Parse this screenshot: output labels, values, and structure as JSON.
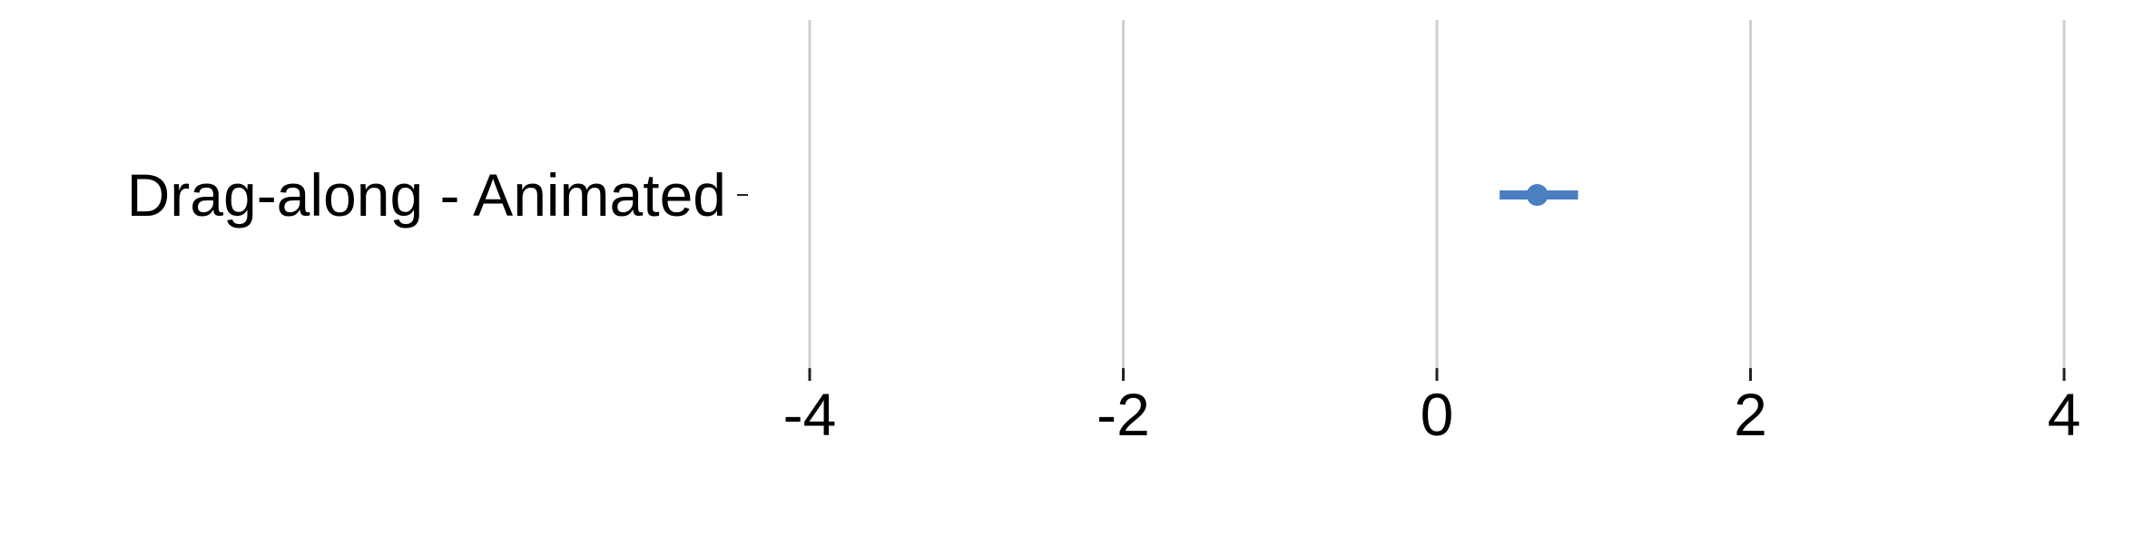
{
  "chart_data": {
    "type": "forest",
    "title": "",
    "xlabel": "",
    "ylabel": "",
    "xlim": [
      -4.4,
      4.4
    ],
    "x_ticks": [
      -4,
      -2,
      0,
      2,
      4
    ],
    "x_tick_labels": [
      "-4",
      "-2",
      "0",
      "2",
      "4"
    ],
    "grid": "vertical",
    "legend": "none",
    "rows": [
      {
        "label": "Drag-along - Animated",
        "estimate": 0.64,
        "lower": 0.4,
        "upper": 0.9
      }
    ],
    "colors": {
      "point": "#4a7fc1",
      "interval": "#4a7fc1",
      "grid": "#d0d0d0",
      "tick": "#222222",
      "text": "#000000"
    }
  }
}
